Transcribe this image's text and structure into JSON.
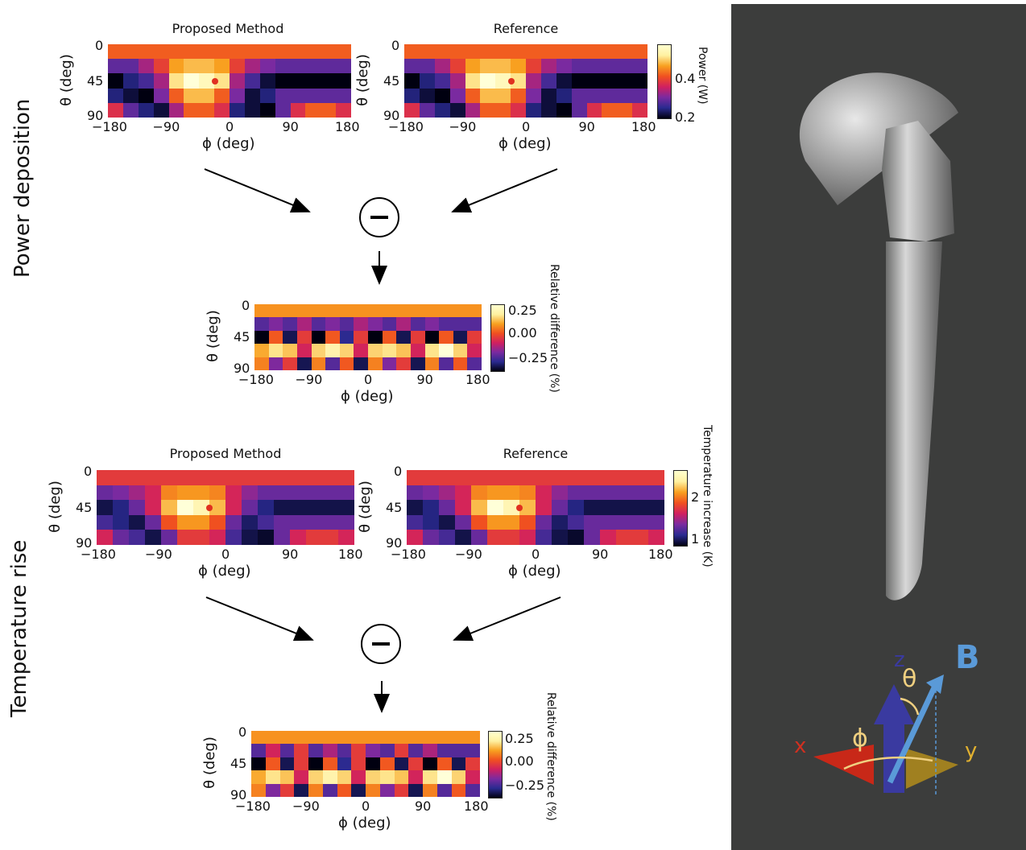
{
  "rows": {
    "power": "Power deposition",
    "temp": "Temperature rise"
  },
  "titles": {
    "proposed": "Proposed Method",
    "reference": "Reference"
  },
  "axes": {
    "theta_label": "θ (deg)",
    "phi_label": "ϕ (deg)",
    "theta_ticks": [
      "0",
      "45",
      "90"
    ],
    "phi_ticks": [
      "−180",
      "−90",
      "0",
      "90",
      "180"
    ]
  },
  "colorbars": {
    "power": {
      "label": "Power (W)",
      "ticks": [
        "0.4",
        "0.2"
      ]
    },
    "temp": {
      "label": "Temperature increase (K)",
      "ticks": [
        "2",
        "1"
      ]
    },
    "diff": {
      "label": "Relative difference (%)",
      "ticks": [
        "0.25",
        "0.00",
        "−0.25"
      ]
    }
  },
  "operator_symbol": "−",
  "axes_glyph": {
    "x": "x",
    "y": "y",
    "z": "z",
    "theta": "θ",
    "phi": "ϕ",
    "B": "B",
    "colors": {
      "x": "#d03020",
      "y": "#e0b030",
      "z": "#3a3aa0",
      "B": "#5a9ad8"
    }
  },
  "colors": {
    "right_background": "#3c3d3c"
  },
  "chart_data": [
    {
      "type": "heatmap",
      "name": "power-proposed",
      "x_label": "ϕ (deg)",
      "y_label": "θ (deg)",
      "x_range": [
        -180,
        180
      ],
      "y_range": [
        0,
        90
      ],
      "z_range": [
        0.2,
        0.6
      ],
      "marker": {
        "phi": -22,
        "theta": 45
      },
      "values": [
        [
          0.45,
          0.45,
          0.45,
          0.45,
          0.45,
          0.45,
          0.45,
          0.45,
          0.45,
          0.45,
          0.45,
          0.45,
          0.45,
          0.45,
          0.45,
          0.45
        ],
        [
          0.3,
          0.3,
          0.35,
          0.42,
          0.5,
          0.52,
          0.52,
          0.5,
          0.42,
          0.35,
          0.32,
          0.3,
          0.3,
          0.3,
          0.3,
          0.3
        ],
        [
          0.2,
          0.25,
          0.28,
          0.35,
          0.55,
          0.6,
          0.58,
          0.55,
          0.35,
          0.28,
          0.22,
          0.2,
          0.2,
          0.2,
          0.2,
          0.2
        ],
        [
          0.25,
          0.22,
          0.2,
          0.32,
          0.45,
          0.52,
          0.52,
          0.45,
          0.32,
          0.22,
          0.25,
          0.3,
          0.3,
          0.3,
          0.3,
          0.3
        ],
        [
          0.4,
          0.3,
          0.25,
          0.22,
          0.35,
          0.45,
          0.45,
          0.4,
          0.25,
          0.22,
          0.2,
          0.3,
          0.4,
          0.45,
          0.45,
          0.4
        ]
      ]
    },
    {
      "type": "heatmap",
      "name": "power-reference",
      "x_label": "ϕ (deg)",
      "y_label": "θ (deg)",
      "x_range": [
        -180,
        180
      ],
      "y_range": [
        0,
        90
      ],
      "z_range": [
        0.2,
        0.6
      ],
      "marker": {
        "phi": -22,
        "theta": 45
      },
      "values": [
        [
          0.45,
          0.45,
          0.45,
          0.45,
          0.45,
          0.45,
          0.45,
          0.45,
          0.45,
          0.45,
          0.45,
          0.45,
          0.45,
          0.45,
          0.45,
          0.45
        ],
        [
          0.3,
          0.3,
          0.35,
          0.42,
          0.5,
          0.52,
          0.52,
          0.5,
          0.42,
          0.35,
          0.32,
          0.3,
          0.3,
          0.3,
          0.3,
          0.3
        ],
        [
          0.2,
          0.25,
          0.28,
          0.35,
          0.55,
          0.6,
          0.58,
          0.55,
          0.35,
          0.28,
          0.22,
          0.2,
          0.2,
          0.2,
          0.2,
          0.2
        ],
        [
          0.25,
          0.22,
          0.2,
          0.32,
          0.45,
          0.52,
          0.52,
          0.45,
          0.32,
          0.22,
          0.25,
          0.3,
          0.3,
          0.3,
          0.3,
          0.3
        ],
        [
          0.4,
          0.3,
          0.25,
          0.22,
          0.35,
          0.45,
          0.45,
          0.4,
          0.25,
          0.22,
          0.2,
          0.3,
          0.4,
          0.45,
          0.45,
          0.4
        ]
      ]
    },
    {
      "type": "heatmap",
      "name": "power-difference",
      "x_label": "ϕ (deg)",
      "y_label": "θ (deg)",
      "x_range": [
        -180,
        180
      ],
      "y_range": [
        0,
        90
      ],
      "z_range": [
        -0.35,
        0.3
      ],
      "values": [
        [
          0.12,
          0.12,
          0.12,
          0.12,
          0.12,
          0.12,
          0.12,
          0.12,
          0.12,
          0.12,
          0.12,
          0.12,
          0.12,
          0.12,
          0.12,
          0.12
        ],
        [
          -0.2,
          -0.15,
          -0.2,
          -0.1,
          -0.2,
          -0.15,
          -0.2,
          -0.1,
          -0.15,
          -0.2,
          -0.1,
          -0.2,
          -0.15,
          -0.2,
          -0.2,
          -0.2
        ],
        [
          -0.35,
          0.05,
          -0.3,
          0.0,
          -0.35,
          0.05,
          -0.25,
          0.0,
          -0.35,
          0.05,
          -0.3,
          0.0,
          -0.35,
          0.05,
          -0.3,
          0.0
        ],
        [
          0.15,
          0.22,
          0.18,
          -0.05,
          0.2,
          0.25,
          0.2,
          -0.05,
          0.2,
          0.22,
          0.18,
          -0.05,
          0.22,
          0.3,
          0.2,
          -0.05
        ],
        [
          0.1,
          -0.15,
          0.0,
          -0.3,
          0.1,
          -0.2,
          0.05,
          -0.3,
          0.1,
          -0.15,
          0.0,
          -0.3,
          0.1,
          -0.2,
          0.05,
          -0.2
        ]
      ]
    },
    {
      "type": "heatmap",
      "name": "temperature-proposed",
      "x_label": "ϕ (deg)",
      "y_label": "θ (deg)",
      "x_range": [
        -180,
        180
      ],
      "y_range": [
        0,
        90
      ],
      "z_range": [
        0.9,
        2.4
      ],
      "marker": {
        "phi": -22,
        "theta": 45
      },
      "values": [
        [
          1.7,
          1.7,
          1.7,
          1.7,
          1.7,
          1.7,
          1.7,
          1.7,
          1.7,
          1.7,
          1.7,
          1.7,
          1.7,
          1.7,
          1.7,
          1.7
        ],
        [
          1.3,
          1.35,
          1.45,
          1.6,
          1.95,
          2.0,
          2.0,
          1.95,
          1.6,
          1.4,
          1.3,
          1.3,
          1.3,
          1.3,
          1.3,
          1.3
        ],
        [
          1.0,
          1.1,
          1.3,
          1.6,
          2.1,
          2.4,
          2.3,
          2.1,
          1.6,
          1.3,
          1.1,
          1.0,
          1.0,
          1.0,
          1.0,
          1.0
        ],
        [
          1.2,
          1.1,
          1.0,
          1.3,
          1.8,
          2.0,
          2.0,
          1.8,
          1.3,
          1.05,
          1.2,
          1.3,
          1.3,
          1.3,
          1.3,
          1.3
        ],
        [
          1.6,
          1.3,
          1.2,
          1.0,
          1.3,
          1.7,
          1.7,
          1.6,
          1.2,
          1.0,
          0.95,
          1.3,
          1.6,
          1.7,
          1.7,
          1.6
        ]
      ]
    },
    {
      "type": "heatmap",
      "name": "temperature-reference",
      "x_label": "ϕ (deg)",
      "y_label": "θ (deg)",
      "x_range": [
        -180,
        180
      ],
      "y_range": [
        0,
        90
      ],
      "z_range": [
        0.9,
        2.4
      ],
      "marker": {
        "phi": -22,
        "theta": 45
      },
      "values": [
        [
          1.7,
          1.7,
          1.7,
          1.7,
          1.7,
          1.7,
          1.7,
          1.7,
          1.7,
          1.7,
          1.7,
          1.7,
          1.7,
          1.7,
          1.7,
          1.7
        ],
        [
          1.3,
          1.35,
          1.45,
          1.6,
          1.95,
          2.0,
          2.0,
          1.95,
          1.6,
          1.4,
          1.3,
          1.3,
          1.3,
          1.3,
          1.3,
          1.3
        ],
        [
          1.0,
          1.1,
          1.3,
          1.6,
          2.1,
          2.4,
          2.3,
          2.1,
          1.6,
          1.3,
          1.1,
          1.0,
          1.0,
          1.0,
          1.0,
          1.0
        ],
        [
          1.2,
          1.1,
          1.0,
          1.3,
          1.8,
          2.0,
          2.0,
          1.8,
          1.3,
          1.05,
          1.2,
          1.3,
          1.3,
          1.3,
          1.3,
          1.3
        ],
        [
          1.6,
          1.3,
          1.2,
          1.0,
          1.3,
          1.7,
          1.7,
          1.6,
          1.2,
          1.0,
          0.95,
          1.3,
          1.6,
          1.7,
          1.7,
          1.6
        ]
      ]
    },
    {
      "type": "heatmap",
      "name": "temperature-difference",
      "x_label": "ϕ (deg)",
      "y_label": "θ (deg)",
      "x_range": [
        -180,
        180
      ],
      "y_range": [
        0,
        90
      ],
      "z_range": [
        -0.35,
        0.3
      ],
      "values": [
        [
          0.12,
          0.12,
          0.12,
          0.12,
          0.12,
          0.12,
          0.12,
          0.12,
          0.12,
          0.12,
          0.12,
          0.12,
          0.12,
          0.12,
          0.12,
          0.12
        ],
        [
          -0.2,
          -0.05,
          -0.2,
          0.0,
          -0.2,
          -0.1,
          -0.2,
          0.0,
          -0.15,
          -0.2,
          0.0,
          -0.2,
          -0.1,
          -0.2,
          -0.2,
          -0.2
        ],
        [
          -0.35,
          0.05,
          -0.3,
          0.0,
          -0.35,
          0.05,
          -0.25,
          0.0,
          -0.35,
          0.05,
          -0.3,
          0.0,
          -0.35,
          0.05,
          -0.3,
          0.0
        ],
        [
          0.15,
          0.22,
          0.18,
          -0.05,
          0.2,
          0.25,
          0.2,
          -0.05,
          0.2,
          0.22,
          0.18,
          -0.05,
          0.22,
          0.3,
          0.2,
          -0.05
        ],
        [
          0.1,
          -0.15,
          0.0,
          -0.3,
          0.1,
          -0.2,
          0.05,
          -0.3,
          0.1,
          -0.15,
          0.0,
          -0.3,
          0.1,
          -0.2,
          0.05,
          -0.2
        ]
      ]
    }
  ]
}
